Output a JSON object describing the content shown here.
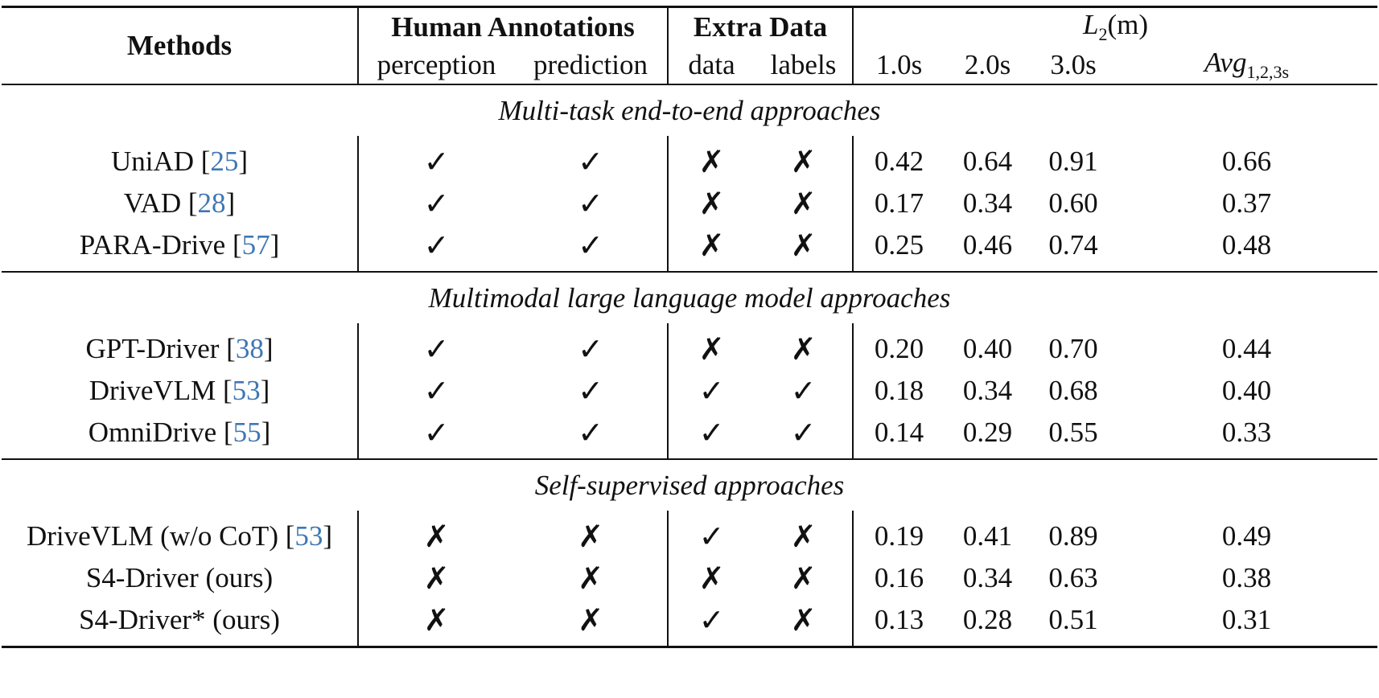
{
  "header": {
    "methods": "Methods",
    "human_annotations": "Human Annotations",
    "extra_data": "Extra Data",
    "l2_letter": "L",
    "l2_sub": "2",
    "l2_unit": "(m)",
    "cols": {
      "perception": "perception",
      "prediction": "prediction",
      "data": "data",
      "labels": "labels",
      "t1": "1.0s",
      "t2": "2.0s",
      "t3": "3.0s",
      "avg": "Avg",
      "avg_sub": "1,2,3s"
    }
  },
  "sections": [
    {
      "title": "Multi-task end-to-end approaches",
      "rows": [
        {
          "method": "UniAD [",
          "cite": "25",
          "close": "]",
          "perception": "✓",
          "prediction": "✓",
          "data": "✗",
          "labels": "✗",
          "t1": "0.42",
          "t2": "0.64",
          "t3": "0.91",
          "avg": "0.66"
        },
        {
          "method": "VAD [",
          "cite": "28",
          "close": "]",
          "perception": "✓",
          "prediction": "✓",
          "data": "✗",
          "labels": "✗",
          "t1": "0.17",
          "t2": "0.34",
          "t3": "0.60",
          "avg": "0.37"
        },
        {
          "method": "PARA-Drive [",
          "cite": "57",
          "close": "]",
          "perception": "✓",
          "prediction": "✓",
          "data": "✗",
          "labels": "✗",
          "t1": "0.25",
          "t2": "0.46",
          "t3": "0.74",
          "avg": "0.48"
        }
      ]
    },
    {
      "title": "Multimodal large language model approaches",
      "rows": [
        {
          "method": "GPT-Driver [",
          "cite": "38",
          "close": "]",
          "perception": "✓",
          "prediction": "✓",
          "data": "✗",
          "labels": "✗",
          "t1": "0.20",
          "t2": "0.40",
          "t3": "0.70",
          "avg": "0.44"
        },
        {
          "method": "DriveVLM [",
          "cite": "53",
          "close": "]",
          "perception": "✓",
          "prediction": "✓",
          "data": "✓",
          "labels": "✓",
          "t1": "0.18",
          "t2": "0.34",
          "t3": "0.68",
          "avg": "0.40"
        },
        {
          "method": "OmniDrive [",
          "cite": "55",
          "close": "]",
          "perception": "✓",
          "prediction": "✓",
          "data": "✓",
          "labels": "✓",
          "t1": "0.14",
          "t2": "0.29",
          "t3": "0.55",
          "avg": "0.33"
        }
      ]
    },
    {
      "title": "Self-supervised approaches",
      "rows": [
        {
          "method": "DriveVLM (w/o CoT) [",
          "cite": "53",
          "close": "]",
          "perception": "✗",
          "prediction": "✗",
          "data": "✓",
          "labels": "✗",
          "t1": "0.19",
          "t2": "0.41",
          "t3": "0.89",
          "avg": "0.49"
        },
        {
          "method": "S4-Driver (ours)",
          "cite": "",
          "close": "",
          "perception": "✗",
          "prediction": "✗",
          "data": "✗",
          "labels": "✗",
          "t1": "0.16",
          "t2": "0.34",
          "t3": "0.63",
          "avg": "0.38"
        },
        {
          "method": "S4-Driver* (ours)",
          "cite": "",
          "close": "",
          "perception": "✗",
          "prediction": "✗",
          "data": "✓",
          "labels": "✗",
          "t1": "0.13",
          "t2": "0.28",
          "t3": "0.51",
          "avg": "0.31",
          "bold_metrics": true
        }
      ]
    }
  ]
}
